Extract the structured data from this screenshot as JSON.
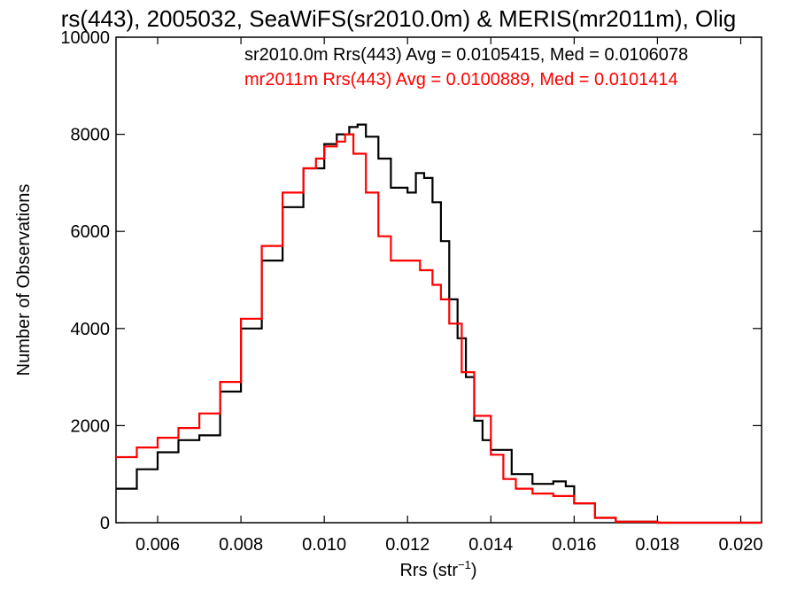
{
  "chart_data": {
    "type": "line",
    "title": "rs(443), 2005032, SeaWiFS(sr2010.0m) & MERIS(mr2011m), Olig",
    "xlabel_main": "Rrs (str",
    "xlabel_sup": "−1",
    "xlabel_close": ")",
    "ylabel": "Number of Observations",
    "xlim": [
      0.005,
      0.0205
    ],
    "ylim": [
      0,
      10000
    ],
    "xticks": [
      0.006,
      0.008,
      0.01,
      0.012,
      0.014,
      0.016,
      0.018,
      0.02
    ],
    "xtick_labels": [
      "0.006",
      "0.008",
      "0.010",
      "0.012",
      "0.014",
      "0.016",
      "0.018",
      "0.020"
    ],
    "yticks": [
      0,
      2000,
      4000,
      6000,
      8000,
      10000
    ],
    "ytick_labels": [
      "0",
      "2000",
      "4000",
      "6000",
      "8000",
      "10000"
    ],
    "grid": false,
    "legend": [
      {
        "text": "sr2010.0m Rrs(443) Avg = 0.0105415, Med = 0.0106078",
        "color": "#000000"
      },
      {
        "text": "mr2011m Rrs(443) Avg = 0.0100889, Med = 0.0101414",
        "color": "#ff0000"
      }
    ],
    "series": [
      {
        "color": "#000000",
        "x": [
          0.005,
          0.0055,
          0.006,
          0.0065,
          0.007,
          0.0075,
          0.008,
          0.0085,
          0.009,
          0.0095,
          0.01,
          0.0103,
          0.0106,
          0.0108,
          0.011,
          0.0113,
          0.0116,
          0.012,
          0.0122,
          0.0124,
          0.0126,
          0.0128,
          0.013,
          0.0132,
          0.0134,
          0.0136,
          0.0138,
          0.014,
          0.0145,
          0.015,
          0.0155,
          0.0158,
          0.016,
          0.0165,
          0.017,
          0.018,
          0.019,
          0.0205
        ],
        "y": [
          700,
          1100,
          1450,
          1700,
          1800,
          2700,
          4000,
          5400,
          6500,
          7300,
          7800,
          8000,
          8150,
          8200,
          7950,
          7500,
          6900,
          6800,
          7200,
          7100,
          6600,
          5800,
          4600,
          3800,
          3000,
          2100,
          1700,
          1500,
          1000,
          800,
          850,
          750,
          400,
          100,
          20,
          0,
          0,
          0
        ]
      },
      {
        "color": "#ff0000",
        "x": [
          0.005,
          0.0055,
          0.006,
          0.0065,
          0.007,
          0.0075,
          0.008,
          0.0085,
          0.009,
          0.0095,
          0.0098,
          0.01,
          0.0103,
          0.0105,
          0.0107,
          0.011,
          0.0113,
          0.0116,
          0.012,
          0.0123,
          0.0126,
          0.0128,
          0.013,
          0.0133,
          0.0136,
          0.014,
          0.0143,
          0.0146,
          0.015,
          0.0155,
          0.016,
          0.0165,
          0.017,
          0.018,
          0.019,
          0.0205
        ],
        "y": [
          1350,
          1550,
          1750,
          1950,
          2250,
          2900,
          4200,
          5700,
          6800,
          7300,
          7500,
          7750,
          7850,
          8000,
          7600,
          6800,
          5900,
          5400,
          5400,
          5200,
          4900,
          4600,
          4100,
          3100,
          2200,
          1400,
          900,
          700,
          600,
          550,
          400,
          100,
          20,
          0,
          0,
          0
        ]
      }
    ]
  }
}
